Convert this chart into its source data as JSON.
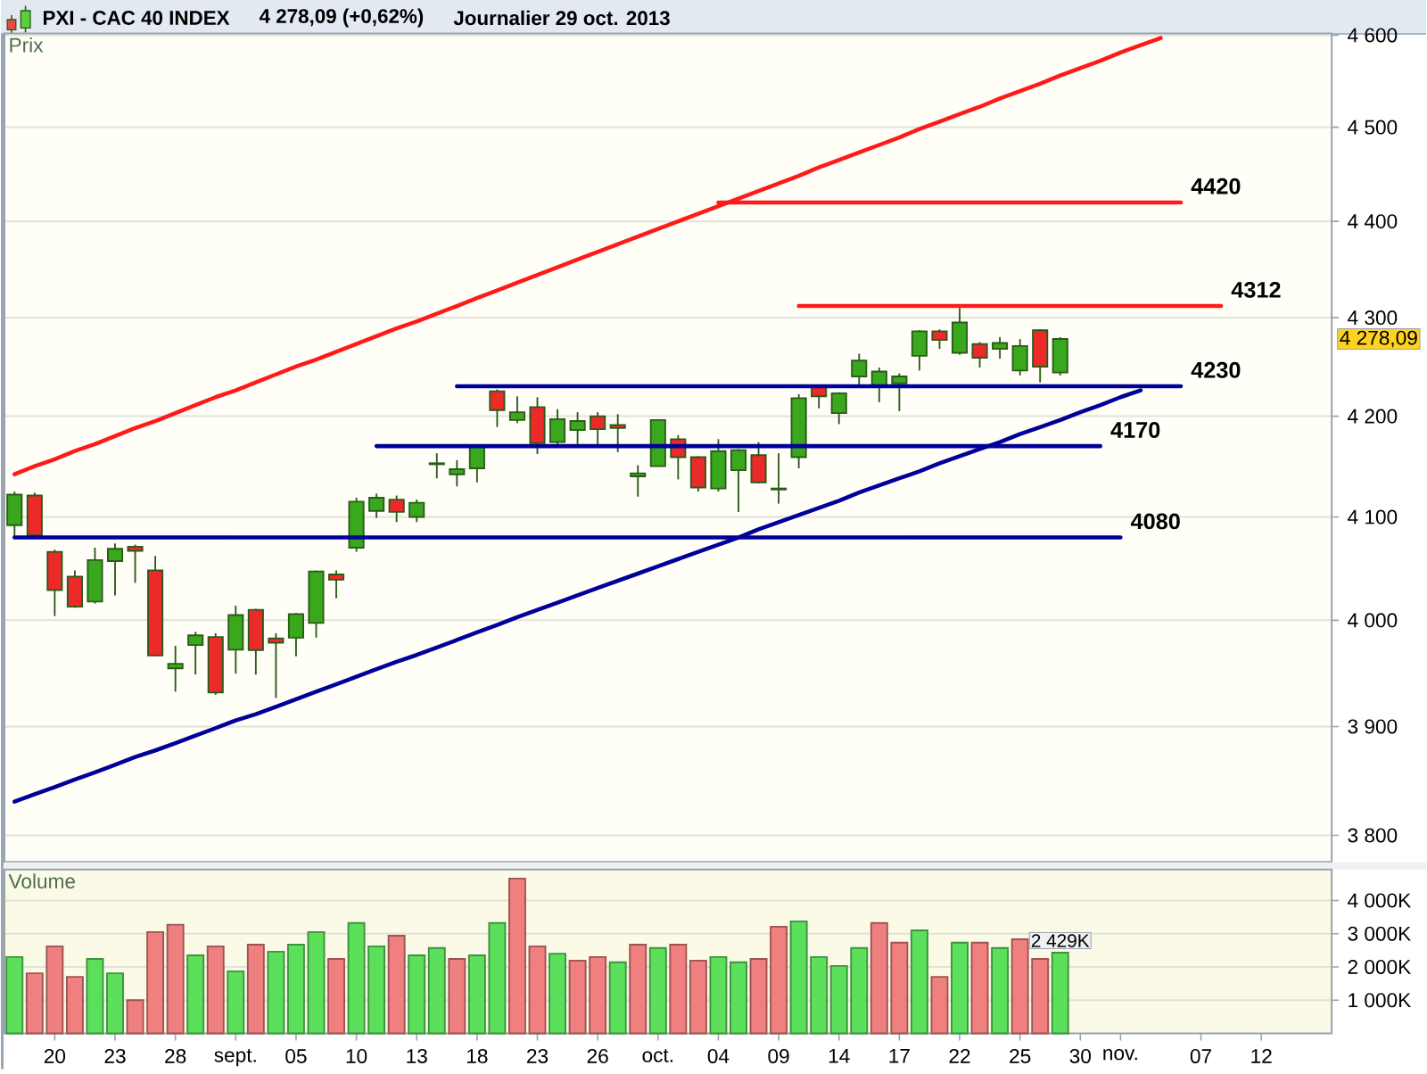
{
  "chart_data": [
    {
      "type": "candlestick",
      "title": "PXI - CAC 40 INDEX",
      "subtitle": "4 278,09 (+0,62%)",
      "ylabel": "Prix",
      "categories": [
        null,
        null,
        null,
        null,
        null,
        null,
        null,
        null,
        null,
        null,
        null,
        null,
        null,
        null,
        null,
        null,
        null,
        null,
        null,
        null,
        null,
        null,
        null,
        null,
        null,
        null,
        null,
        null,
        null,
        null,
        null,
        null,
        null,
        null,
        null,
        null,
        null,
        null,
        null,
        null,
        null,
        null,
        null,
        null,
        null,
        null,
        null,
        null,
        null,
        null,
        null,
        null,
        null,
        null,
        null,
        null,
        null,
        null,
        null,
        null,
        null,
        null,
        null,
        null,
        null,
        null
      ],
      "ohlc": [
        [
          4092,
          4125,
          4079,
          4122
        ],
        [
          4121,
          4124,
          4079,
          4082
        ],
        [
          4066,
          4068,
          4004,
          4029
        ],
        [
          4042,
          4048,
          4012,
          4013
        ],
        [
          4018,
          4070,
          4016,
          4058
        ],
        [
          4057,
          4074,
          4024,
          4069
        ],
        [
          4071,
          4073,
          4036,
          4067
        ],
        [
          4048,
          4062,
          3966,
          3967
        ],
        [
          3955,
          3976,
          3933,
          3959
        ],
        [
          3977,
          3990,
          3949,
          3986
        ],
        [
          3985,
          3988,
          3930,
          3932
        ],
        [
          3973,
          4014,
          3950,
          4005
        ],
        [
          4010,
          4011,
          3949,
          3972
        ],
        [
          3983,
          3988,
          3927,
          3979
        ],
        [
          3984,
          4007,
          3966,
          4006
        ],
        [
          3998,
          4048,
          3984,
          4047
        ],
        [
          4044,
          4048,
          4021,
          4039
        ],
        [
          4070,
          4119,
          4066,
          4115
        ],
        [
          4106,
          4123,
          4099,
          4119
        ],
        [
          4117,
          4121,
          4095,
          4105
        ],
        [
          4100,
          4117,
          4095,
          4114
        ],
        [
          4152,
          4163,
          4138,
          4153
        ],
        [
          4142,
          4156,
          4130,
          4147
        ],
        [
          4148,
          4171,
          4134,
          4170
        ],
        [
          4225,
          4227,
          4189,
          4206
        ],
        [
          4196,
          4220,
          4193,
          4204
        ],
        [
          4209,
          4219,
          4162,
          4173
        ],
        [
          4174,
          4207,
          4171,
          4197
        ],
        [
          4186,
          4204,
          4172,
          4195
        ],
        [
          4200,
          4204,
          4172,
          4187
        ],
        [
          4191,
          4202,
          4164,
          4188
        ],
        [
          4140,
          4151,
          4120,
          4143
        ],
        [
          4150,
          4197,
          4150,
          4196
        ],
        [
          4177,
          4181,
          4137,
          4159
        ],
        [
          4159,
          4160,
          4125,
          4129
        ],
        [
          4128,
          4177,
          4125,
          4165
        ],
        [
          4146,
          4167,
          4105,
          4166
        ],
        [
          4161,
          4174,
          4133,
          4134
        ],
        [
          4127,
          4163,
          4113,
          4128
        ],
        [
          4159,
          4222,
          4148,
          4218
        ],
        [
          4229,
          4230,
          4208,
          4220
        ],
        [
          4203,
          4224,
          4192,
          4223
        ],
        [
          4240,
          4263,
          4231,
          4256
        ],
        [
          4229,
          4249,
          4214,
          4245
        ],
        [
          4233,
          4243,
          4205,
          4240
        ],
        [
          4261,
          4287,
          4246,
          4286
        ],
        [
          4286,
          4288,
          4268,
          4277
        ],
        [
          4264,
          4310,
          4262,
          4295
        ],
        [
          4273,
          4275,
          4249,
          4259
        ],
        [
          4268,
          4280,
          4258,
          4274
        ],
        [
          4246,
          4278,
          4241,
          4271
        ],
        [
          4287,
          4288,
          4234,
          4250
        ],
        [
          4244,
          4280,
          4241,
          4278.09
        ],
        null,
        null,
        null,
        null,
        null,
        null,
        null,
        null,
        null,
        null,
        null,
        null,
        null
      ],
      "colors": [
        "#3aa81c",
        "#ec2a2a",
        "#ec2a2a",
        "#ec2a2a",
        "#3aa81c",
        "#3aa81c",
        "#ec2a2a",
        "#ec2a2a",
        "#3aa81c",
        "#3aa81c",
        "#ec2a2a",
        "#3aa81c",
        "#ec2a2a",
        "#ec2a2a",
        "#3aa81c",
        "#3aa81c",
        "#ec2a2a",
        "#3aa81c",
        "#3aa81c",
        "#ec2a2a",
        "#3aa81c",
        "#3aa81c",
        "#3aa81c",
        "#3aa81c",
        "#ec2a2a",
        "#3aa81c",
        "#ec2a2a",
        "#3aa81c",
        "#3aa81c",
        "#ec2a2a",
        "#ec2a2a",
        "#3aa81c",
        "#3aa81c",
        "#ec2a2a",
        "#ec2a2a",
        "#3aa81c",
        "#3aa81c",
        "#ec2a2a",
        "#3aa81c",
        "#3aa81c",
        "#ec2a2a",
        "#3aa81c",
        "#3aa81c",
        "#3aa81c",
        "#3aa81c",
        "#3aa81c",
        "#ec2a2a",
        "#3aa81c",
        "#ec2a2a",
        "#3aa81c",
        "#3aa81c",
        "#ec2a2a",
        "#3aa81c",
        null,
        null,
        null,
        null,
        null,
        null,
        null,
        null,
        null,
        null,
        null,
        null,
        null
      ],
      "value_labels": [
        null,
        null,
        null,
        null,
        null,
        null,
        null,
        null,
        null,
        null,
        null,
        null,
        null,
        null,
        null,
        null,
        null,
        null,
        null,
        null,
        null,
        null,
        null,
        null,
        null,
        null,
        null,
        null,
        null,
        null,
        null,
        null,
        null,
        null,
        null,
        null,
        null,
        null,
        null,
        null,
        null,
        null,
        null,
        null,
        null,
        null,
        null,
        null,
        null,
        null,
        null,
        null,
        "4 278,09",
        null,
        null,
        null,
        null,
        null,
        null,
        null,
        null,
        null,
        null,
        null,
        null,
        null
      ],
      "series": [
        {
          "type": "line",
          "color": "#ff1a1a",
          "values": [
            4142,
            4150,
            4157,
            4165,
            4172,
            4180,
            4188,
            4195,
            4203,
            4211,
            4219,
            4226,
            4234,
            4242,
            4250,
            4257,
            4265,
            4273,
            4281,
            4289,
            4296,
            4304,
            4312,
            4320,
            4328,
            4336,
            4344,
            4352,
            4360,
            4368,
            4376,
            4384,
            4392,
            4400,
            4408,
            4416,
            4424,
            4432,
            4440,
            4448,
            4457,
            4465,
            4473,
            4481,
            4489,
            4498,
            4506,
            4514,
            4522,
            4531,
            4539,
            4547,
            4556,
            4564,
            4572,
            4581,
            4589,
            4597,
            null,
            null,
            null,
            null,
            null,
            null,
            null,
            null
          ]
        },
        {
          "type": "line",
          "color": "#000099",
          "values": [
            3831,
            3838,
            3844,
            3851,
            3858,
            3865,
            3872,
            3878,
            3885,
            3892,
            3899,
            3906,
            3912,
            3919,
            3926,
            3933,
            3940,
            3947,
            3954,
            3961,
            3968,
            3975,
            3982,
            3989,
            3996,
            4003,
            4010,
            4017,
            4024,
            4031,
            4038,
            4045,
            4052,
            4059,
            4066,
            4073,
            4080,
            4088,
            4095,
            4102,
            4109,
            4116,
            4124,
            4131,
            4138,
            4145,
            4153,
            4160,
            4167,
            4174,
            4182,
            4189,
            4196,
            4204,
            4211,
            4219,
            4226,
            null,
            null,
            null,
            null,
            null,
            null,
            null,
            null,
            null
          ]
        },
        {
          "type": "line",
          "color": "#ff1a1a",
          "name": "4420",
          "values": [
            null,
            null,
            null,
            null,
            null,
            null,
            null,
            null,
            null,
            null,
            null,
            null,
            null,
            null,
            null,
            null,
            null,
            null,
            null,
            null,
            null,
            null,
            null,
            null,
            null,
            null,
            null,
            null,
            null,
            null,
            null,
            null,
            null,
            null,
            null,
            4420,
            4420,
            4420,
            4420,
            4420,
            4420,
            4420,
            4420,
            4420,
            4420,
            4420,
            4420,
            4420,
            4420,
            4420,
            4420,
            4420,
            4420,
            4420,
            4420,
            4420,
            4420,
            4420,
            4420,
            null,
            null,
            null,
            null,
            null,
            null,
            null
          ]
        },
        {
          "type": "line",
          "color": "#ff1a1a",
          "name": "4312",
          "values": [
            null,
            null,
            null,
            null,
            null,
            null,
            null,
            null,
            null,
            null,
            null,
            null,
            null,
            null,
            null,
            null,
            null,
            null,
            null,
            null,
            null,
            null,
            null,
            null,
            null,
            null,
            null,
            null,
            null,
            null,
            null,
            null,
            null,
            null,
            null,
            null,
            null,
            null,
            null,
            4312,
            4312,
            4312,
            4312,
            4312,
            4312,
            4312,
            4312,
            4312,
            4312,
            4312,
            4312,
            4312,
            4312,
            4312,
            4312,
            4312,
            4312,
            4312,
            4312,
            4312,
            4312,
            null,
            null,
            null,
            null,
            null
          ]
        },
        {
          "type": "line",
          "color": "#000099",
          "name": "4230",
          "values": [
            null,
            null,
            null,
            null,
            null,
            null,
            null,
            null,
            null,
            null,
            null,
            null,
            null,
            null,
            null,
            null,
            null,
            null,
            null,
            null,
            null,
            null,
            4230,
            4230,
            4230,
            4230,
            4230,
            4230,
            4230,
            4230,
            4230,
            4230,
            4230,
            4230,
            4230,
            4230,
            4230,
            4230,
            4230,
            4230,
            4230,
            4230,
            4230,
            4230,
            4230,
            4230,
            4230,
            4230,
            4230,
            4230,
            4230,
            4230,
            4230,
            4230,
            4230,
            4230,
            4230,
            4230,
            4230,
            null,
            null,
            null,
            null,
            null,
            null,
            null
          ]
        },
        {
          "type": "line",
          "color": "#000099",
          "name": "4170",
          "values": [
            null,
            null,
            null,
            null,
            null,
            null,
            null,
            null,
            null,
            null,
            null,
            null,
            null,
            null,
            null,
            null,
            null,
            null,
            4170,
            4170,
            4170,
            4170,
            4170,
            4170,
            4170,
            4170,
            4170,
            4170,
            4170,
            4170,
            4170,
            4170,
            4170,
            4170,
            4170,
            4170,
            4170,
            4170,
            4170,
            4170,
            4170,
            4170,
            4170,
            4170,
            4170,
            4170,
            4170,
            4170,
            4170,
            4170,
            4170,
            4170,
            4170,
            4170,
            4170,
            null,
            null,
            null,
            null,
            null,
            null,
            null,
            null,
            null,
            null,
            null
          ]
        },
        {
          "type": "line",
          "color": "#000099",
          "name": "4080",
          "values": [
            4080,
            4080,
            4080,
            4080,
            4080,
            4080,
            4080,
            4080,
            4080,
            4080,
            4080,
            4080,
            4080,
            4080,
            4080,
            4080,
            4080,
            4080,
            4080,
            4080,
            4080,
            4080,
            4080,
            4080,
            4080,
            4080,
            4080,
            4080,
            4080,
            4080,
            4080,
            4080,
            4080,
            4080,
            4080,
            4080,
            4080,
            4080,
            4080,
            4080,
            4080,
            4080,
            4080,
            4080,
            4080,
            4080,
            4080,
            4080,
            4080,
            4080,
            4080,
            4080,
            4080,
            4080,
            4080,
            4080,
            null,
            null,
            null,
            null,
            null,
            null,
            null,
            null,
            null,
            null
          ]
        }
      ],
      "ylim": [
        3776,
        4602
      ],
      "log": true,
      "yticks": [
        {
          "value": 3800,
          "label": "3 800"
        },
        {
          "value": 3900,
          "label": "3 900"
        },
        {
          "value": 4000,
          "label": "4 000"
        },
        {
          "value": 4100,
          "label": "4 100"
        },
        {
          "value": 4200,
          "label": "4 200"
        },
        {
          "value": 4300,
          "label": "4 300"
        },
        {
          "value": 4400,
          "label": "4 400"
        },
        {
          "value": 4500,
          "label": "4 500"
        },
        {
          "value": 4600,
          "label": "4 600"
        }
      ],
      "grid": "y",
      "tick_labels": "y",
      "annotations": [
        "Journalier 29 oct. 2013"
      ]
    },
    {
      "type": "bar",
      "ylabel": "Volume",
      "categories": [
        null,
        null,
        "20",
        null,
        null,
        "23",
        null,
        null,
        "28",
        null,
        null,
        "sept.",
        null,
        null,
        "05",
        null,
        null,
        "10",
        null,
        null,
        "13",
        null,
        null,
        "18",
        null,
        null,
        "23",
        null,
        null,
        "26",
        null,
        null,
        "oct.",
        null,
        null,
        "04",
        null,
        null,
        "09",
        null,
        null,
        "14",
        null,
        null,
        "17",
        null,
        null,
        "22",
        null,
        null,
        "25",
        null,
        null,
        "30",
        null,
        "nov.",
        null,
        null,
        null,
        "07",
        null,
        null,
        "12",
        null,
        null,
        null
      ],
      "values": [
        2300,
        1810,
        2620,
        1700,
        2240,
        1810,
        1000,
        3050,
        3270,
        2350,
        2620,
        1870,
        2670,
        2460,
        2670,
        3050,
        2240,
        3320,
        2620,
        2940,
        2350,
        2570,
        2240,
        2350,
        3320,
        4660,
        2620,
        2400,
        2190,
        2300,
        2140,
        2670,
        2570,
        2670,
        2190,
        2300,
        2140,
        2240,
        3210,
        3370,
        2300,
        2030,
        2570,
        3320,
        2730,
        3100,
        1700,
        2730,
        2730,
        2570,
        2830,
        2240,
        2429,
        null,
        null,
        null,
        null,
        null,
        null,
        null,
        null,
        null,
        null,
        null,
        null,
        null
      ],
      "colors": [
        "#5ce05c",
        "#f08080",
        "#f08080",
        "#f08080",
        "#5ce05c",
        "#5ce05c",
        "#f08080",
        "#f08080",
        "#f08080",
        "#5ce05c",
        "#f08080",
        "#5ce05c",
        "#f08080",
        "#5ce05c",
        "#5ce05c",
        "#5ce05c",
        "#f08080",
        "#5ce05c",
        "#5ce05c",
        "#f08080",
        "#5ce05c",
        "#5ce05c",
        "#f08080",
        "#5ce05c",
        "#5ce05c",
        "#f08080",
        "#f08080",
        "#5ce05c",
        "#f08080",
        "#f08080",
        "#5ce05c",
        "#f08080",
        "#5ce05c",
        "#f08080",
        "#f08080",
        "#5ce05c",
        "#5ce05c",
        "#f08080",
        "#f08080",
        "#5ce05c",
        "#5ce05c",
        "#5ce05c",
        "#5ce05c",
        "#f08080",
        "#f08080",
        "#5ce05c",
        "#f08080",
        "#5ce05c",
        "#f08080",
        "#5ce05c",
        "#f08080",
        "#f08080",
        "#5ce05c",
        null,
        null,
        null,
        null,
        null,
        null,
        null,
        null,
        null,
        null,
        null,
        null,
        null
      ],
      "value_labels": [
        null,
        null,
        null,
        null,
        null,
        null,
        null,
        null,
        null,
        null,
        null,
        null,
        null,
        null,
        null,
        null,
        null,
        null,
        null,
        null,
        null,
        null,
        null,
        null,
        null,
        null,
        null,
        null,
        null,
        null,
        null,
        null,
        null,
        null,
        null,
        null,
        null,
        null,
        null,
        null,
        null,
        null,
        null,
        null,
        null,
        null,
        null,
        null,
        null,
        null,
        null,
        null,
        "2 429K",
        null,
        null,
        null,
        null,
        null,
        null,
        null,
        null,
        null,
        null,
        null,
        null,
        null
      ],
      "ylim": [
        0,
        4930
      ],
      "yticks": [
        {
          "value": 1000,
          "label": "1 000K"
        },
        {
          "value": 2000,
          "label": "2 000K"
        },
        {
          "value": 3000,
          "label": "3 000K"
        },
        {
          "value": 4000,
          "label": "4 000K"
        }
      ],
      "grid": "y"
    }
  ]
}
